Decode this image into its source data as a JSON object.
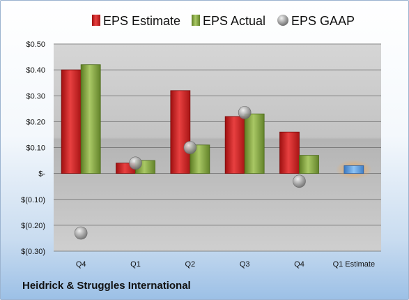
{
  "company_name": "Heidrick & Struggles International",
  "chart_data": {
    "type": "bar",
    "categories": [
      "Q4",
      "Q1",
      "Q2",
      "Q3",
      "Q4",
      "Q1 Estimate"
    ],
    "series": [
      {
        "name": "EPS Estimate",
        "type": "bar",
        "color": "#d42a2a",
        "values": [
          0.4,
          0.04,
          0.32,
          0.22,
          0.16,
          null
        ]
      },
      {
        "name": "EPS Actual",
        "type": "bar",
        "color": "#8fb04a",
        "values": [
          0.42,
          0.05,
          0.11,
          0.23,
          0.07,
          null
        ]
      },
      {
        "name": "EPS GAAP",
        "type": "scatter",
        "color": "#a9a9a9",
        "values": [
          -0.23,
          0.04,
          0.1,
          0.235,
          -0.03,
          null
        ]
      },
      {
        "name": "",
        "type": "bar",
        "color": "#6aa7e6",
        "values": [
          null,
          null,
          null,
          null,
          null,
          0.03
        ]
      }
    ],
    "ylim": [
      -0.3,
      0.5
    ],
    "yticks": [
      0.5,
      0.4,
      0.3,
      0.2,
      0.1,
      0,
      -0.1,
      -0.2,
      -0.3
    ],
    "ytick_labels": [
      "$0.50",
      "$0.40",
      "$0.30",
      "$0.20",
      "$0.10",
      "$-",
      "$(0.10)",
      "$(0.20)",
      "$(0.30)"
    ],
    "legend": [
      "EPS Estimate",
      "EPS Actual",
      "EPS GAAP"
    ],
    "legend_position": "top",
    "grid": true
  }
}
